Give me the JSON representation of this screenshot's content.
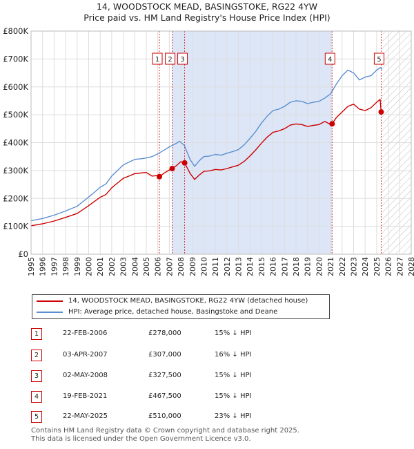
{
  "header": {
    "title_line1": "14, WOODSTOCK MEAD, BASINGSTOKE, RG22 4YW",
    "title_line2": "Price paid vs. HM Land Registry's House Price Index (HPI)"
  },
  "colors": {
    "price_line": "#cc0000",
    "hpi_line": "#5b8fd0",
    "sale_shade": "#dde6f7",
    "grid": "#dddddd"
  },
  "chart_data": {
    "type": "line",
    "title": "14, WOODSTOCK MEAD, BASINGSTOKE, RG22 4YW — Price paid vs. HM Land Registry's House Price Index (HPI)",
    "xlabel": "",
    "ylabel": "",
    "xlim": [
      1995,
      2028
    ],
    "ylim": [
      0,
      800000
    ],
    "x_ticks": [
      1995,
      1996,
      1997,
      1998,
      1999,
      2000,
      2001,
      2002,
      2003,
      2004,
      2005,
      2006,
      2007,
      2008,
      2009,
      2010,
      2011,
      2012,
      2013,
      2014,
      2015,
      2016,
      2017,
      2018,
      2019,
      2020,
      2021,
      2022,
      2023,
      2024,
      2025,
      2026,
      2027,
      2028
    ],
    "y_ticks": [
      0,
      100000,
      200000,
      300000,
      400000,
      500000,
      600000,
      700000,
      800000
    ],
    "y_tick_labels": [
      "£0",
      "£100K",
      "£200K",
      "£300K",
      "£400K",
      "£500K",
      "£600K",
      "£700K",
      "£800K"
    ],
    "projection_start": 2025.45,
    "series": [
      {
        "name": "HPI: Average price, detached house, Basingstoke and Deane",
        "color": "#5b8fd0",
        "x": [
          1995.0,
          1996.0,
          1997.0,
          1998.0,
          1999.0,
          2000.0,
          2000.5,
          2001.0,
          2001.5,
          2002.0,
          2002.5,
          2003.0,
          2003.5,
          2004.0,
          2004.5,
          2005.0,
          2005.5,
          2006.0,
          2006.5,
          2007.0,
          2007.5,
          2007.9,
          2008.3,
          2008.8,
          2009.2,
          2009.6,
          2010.0,
          2010.5,
          2011.0,
          2011.5,
          2012.0,
          2012.5,
          2013.0,
          2013.5,
          2014.0,
          2014.5,
          2015.0,
          2015.5,
          2016.0,
          2016.5,
          2017.0,
          2017.5,
          2018.0,
          2018.5,
          2019.0,
          2019.5,
          2020.0,
          2020.5,
          2021.0,
          2021.5,
          2022.0,
          2022.5,
          2023.0,
          2023.5,
          2024.0,
          2024.5,
          2025.0,
          2025.35,
          2025.45
        ],
        "y": [
          120000,
          128000,
          140000,
          155000,
          172000,
          205000,
          222000,
          240000,
          252000,
          280000,
          300000,
          320000,
          330000,
          340000,
          342000,
          345000,
          350000,
          360000,
          372000,
          385000,
          395000,
          405000,
          390000,
          340000,
          315000,
          335000,
          350000,
          352000,
          358000,
          355000,
          362000,
          368000,
          375000,
          392000,
          415000,
          440000,
          470000,
          495000,
          515000,
          520000,
          530000,
          545000,
          550000,
          548000,
          540000,
          545000,
          548000,
          560000,
          575000,
          610000,
          640000,
          660000,
          650000,
          625000,
          635000,
          640000,
          660000,
          670000,
          662000
        ]
      },
      {
        "name": "14, WOODSTOCK MEAD, BASINGSTOKE, RG22 4YW (detached house)",
        "color": "#cc0000",
        "x": [
          1995.0,
          1996.0,
          1997.0,
          1998.0,
          1999.0,
          2000.0,
          2000.5,
          2001.0,
          2001.5,
          2002.0,
          2002.5,
          2003.0,
          2003.5,
          2004.0,
          2004.5,
          2005.0,
          2005.5,
          2006.0,
          2006.14,
          2006.6,
          2007.0,
          2007.25,
          2007.6,
          2008.0,
          2008.33,
          2008.8,
          2009.2,
          2009.6,
          2010.0,
          2010.5,
          2011.0,
          2011.5,
          2012.0,
          2012.5,
          2013.0,
          2013.5,
          2014.0,
          2014.5,
          2015.0,
          2015.5,
          2016.0,
          2016.5,
          2017.0,
          2017.5,
          2018.0,
          2018.5,
          2019.0,
          2019.5,
          2020.0,
          2020.5,
          2021.0,
          2021.13,
          2021.5,
          2022.0,
          2022.5,
          2023.0,
          2023.5,
          2024.0,
          2024.5,
          2025.0,
          2025.3,
          2025.39
        ],
        "y": [
          102000,
          109000,
          119000,
          132000,
          146000,
          174000,
          189000,
          204000,
          214000,
          238000,
          255000,
          272000,
          280000,
          289000,
          291000,
          293000,
          280000,
          282000,
          278000,
          292000,
          302000,
          307000,
          317000,
          332000,
          327500,
          290000,
          268000,
          284000,
          297000,
          299000,
          304000,
          302000,
          307000,
          313000,
          319000,
          333000,
          352000,
          374000,
          398000,
          420000,
          437000,
          442000,
          450000,
          463000,
          467000,
          465000,
          458000,
          462000,
          465000,
          476000,
          465000,
          467500,
          490000,
          510000,
          530000,
          538000,
          520000,
          515000,
          525000,
          545000,
          555000,
          510000
        ]
      }
    ],
    "transactions": [
      {
        "num": "1",
        "x": 2006.14,
        "price": 278000
      },
      {
        "num": "2",
        "x": 2007.25,
        "price": 307000
      },
      {
        "num": "3",
        "x": 2008.33,
        "price": 327500
      },
      {
        "num": "4",
        "x": 2021.13,
        "price": 467500
      },
      {
        "num": "5",
        "x": 2025.39,
        "price": 510000
      }
    ]
  },
  "legend": {
    "price_label": "14, WOODSTOCK MEAD, BASINGSTOKE, RG22 4YW (detached house)",
    "hpi_label": "HPI: Average price, detached house, Basingstoke and Deane"
  },
  "transactions_table": [
    {
      "num": "1",
      "date": "22-FEB-2006",
      "price": "£278,000",
      "hpi": "15% ↓ HPI"
    },
    {
      "num": "2",
      "date": "03-APR-2007",
      "price": "£307,000",
      "hpi": "16% ↓ HPI"
    },
    {
      "num": "3",
      "date": "02-MAY-2008",
      "price": "£327,500",
      "hpi": "15% ↓ HPI"
    },
    {
      "num": "4",
      "date": "19-FEB-2021",
      "price": "£467,500",
      "hpi": "15% ↓ HPI"
    },
    {
      "num": "5",
      "date": "22-MAY-2025",
      "price": "£510,000",
      "hpi": "23% ↓ HPI"
    }
  ],
  "footer": {
    "line1": "Contains HM Land Registry data © Crown copyright and database right 2025.",
    "line2": "This data is licensed under the Open Government Licence v3.0."
  }
}
